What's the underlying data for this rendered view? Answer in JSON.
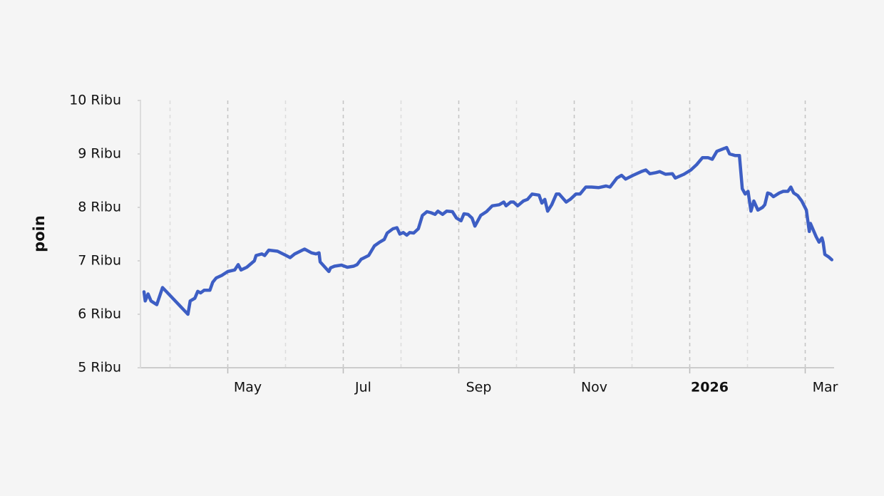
{
  "chart_data": {
    "type": "line",
    "ylabel": "poin",
    "x": [
      3.55,
      3.57,
      3.62,
      3.67,
      3.77,
      3.87,
      4.31,
      4.35,
      4.43,
      4.48,
      4.53,
      4.59,
      4.69,
      4.74,
      4.8,
      4.9,
      5.0,
      5.12,
      5.18,
      5.23,
      5.33,
      5.46,
      5.49,
      5.59,
      5.64,
      5.71,
      5.86,
      6.01,
      6.08,
      6.16,
      6.33,
      6.45,
      6.53,
      6.58,
      6.6,
      6.75,
      6.78,
      6.85,
      6.97,
      7.07,
      7.18,
      7.24,
      7.31,
      7.44,
      7.54,
      7.63,
      7.71,
      7.76,
      7.86,
      7.93,
      7.98,
      8.04,
      8.1,
      8.15,
      8.22,
      8.3,
      8.37,
      8.45,
      8.52,
      8.59,
      8.64,
      8.72,
      8.79,
      8.89,
      8.96,
      9.04,
      9.09,
      9.16,
      9.23,
      9.28,
      9.38,
      9.48,
      9.58,
      9.7,
      9.78,
      9.82,
      9.9,
      9.95,
      10.02,
      10.12,
      10.19,
      10.27,
      10.39,
      10.44,
      10.49,
      10.54,
      10.61,
      10.69,
      10.74,
      10.86,
      10.93,
      11.03,
      11.1,
      11.2,
      11.3,
      11.42,
      11.55,
      11.62,
      11.74,
      11.82,
      11.89,
      12.02,
      12.16,
      12.24,
      12.31,
      12.41,
      12.48,
      12.58,
      12.7,
      12.75,
      12.9,
      13.02,
      13.12,
      13.22,
      13.32,
      13.39,
      13.47,
      13.59,
      13.64,
      13.69,
      13.79,
      13.86,
      13.91,
      13.96,
      14.01,
      14.06,
      14.11,
      14.18,
      14.26,
      14.3,
      14.35,
      14.4,
      14.45,
      14.55,
      14.62,
      14.7,
      14.75,
      14.8,
      14.87,
      14.94,
      15.02,
      15.07,
      15.09,
      15.19,
      15.24,
      15.29,
      15.31,
      15.34,
      15.41,
      15.46
    ],
    "series": [
      {
        "color": "#3d5ec4",
        "values": [
          6420,
          6250,
          6380,
          6250,
          6180,
          6500,
          6000,
          6250,
          6300,
          6430,
          6400,
          6450,
          6450,
          6600,
          6680,
          6730,
          6800,
          6830,
          6930,
          6830,
          6880,
          7000,
          7100,
          7130,
          7100,
          7200,
          7180,
          7100,
          7060,
          7130,
          7220,
          7150,
          7130,
          7150,
          6980,
          6800,
          6870,
          6900,
          6920,
          6880,
          6900,
          6930,
          7030,
          7100,
          7280,
          7350,
          7400,
          7520,
          7600,
          7620,
          7500,
          7530,
          7480,
          7530,
          7520,
          7600,
          7850,
          7920,
          7900,
          7870,
          7930,
          7870,
          7930,
          7920,
          7800,
          7750,
          7880,
          7870,
          7800,
          7650,
          7850,
          7920,
          8030,
          8050,
          8100,
          8030,
          8100,
          8100,
          8030,
          8120,
          8150,
          8250,
          8230,
          8080,
          8150,
          7930,
          8050,
          8250,
          8250,
          8100,
          8150,
          8250,
          8250,
          8380,
          8380,
          8370,
          8400,
          8380,
          8550,
          8600,
          8530,
          8600,
          8670,
          8700,
          8630,
          8650,
          8670,
          8620,
          8630,
          8550,
          8620,
          8700,
          8800,
          8930,
          8930,
          8900,
          9050,
          9100,
          9120,
          9000,
          8970,
          8970,
          8350,
          8250,
          8300,
          7930,
          8120,
          7950,
          8000,
          8050,
          8270,
          8250,
          8200,
          8270,
          8300,
          8300,
          8380,
          8270,
          8220,
          8120,
          7950,
          7550,
          7700,
          7450,
          7350,
          7430,
          7350,
          7120,
          7070,
          7020
        ]
      }
    ],
    "xlim": [
      3.5,
      15.5
    ],
    "xticks": [
      {
        "value": 5,
        "label": "May"
      },
      {
        "value": 7,
        "label": "Jul"
      },
      {
        "value": 9,
        "label": "Sep"
      },
      {
        "value": 11,
        "label": "Nov"
      },
      {
        "value": 13,
        "label": "2026"
      },
      {
        "value": 15,
        "label": "Mar"
      }
    ],
    "xminorticks": [
      4,
      6,
      8,
      10,
      12,
      14
    ],
    "ylim": [
      5000,
      10000
    ],
    "yticks": [
      {
        "value": 5000,
        "label": "5 Ribu"
      },
      {
        "value": 6000,
        "label": "6 Ribu"
      },
      {
        "value": 7000,
        "label": "7 Ribu"
      },
      {
        "value": 8000,
        "label": "8 Ribu"
      },
      {
        "value": 9000,
        "label": "9 Ribu"
      },
      {
        "value": 10000,
        "label": "10 Ribu"
      }
    ],
    "grid": true
  }
}
